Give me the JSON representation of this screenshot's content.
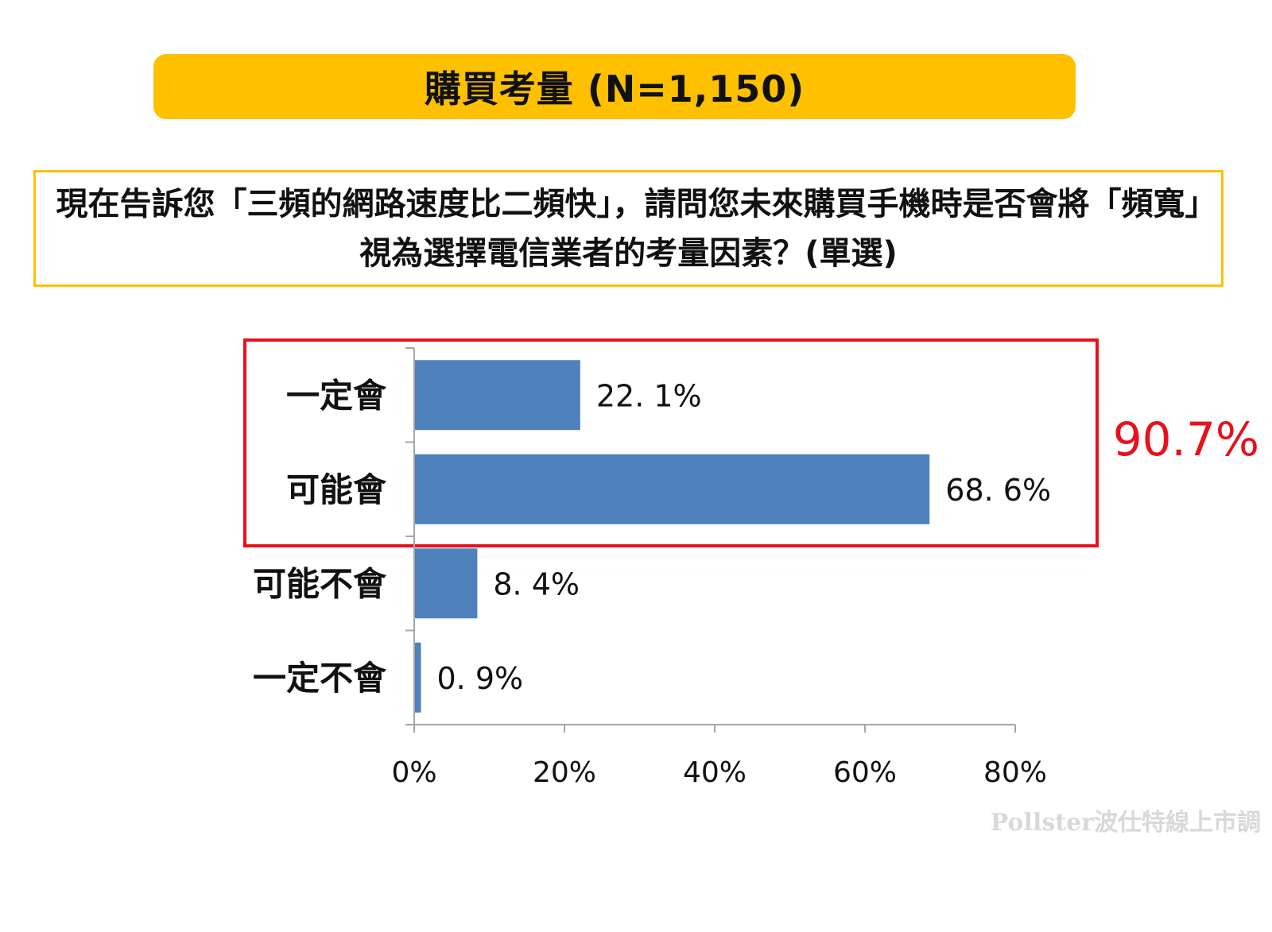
{
  "title": "購買考量 (N=1,150)",
  "question": "現在告訴您「三頻的網路速度比二頻快」，請問您未來購買手機時是否會將「頻寬」視為選擇電信業者的考量因素？(單選)",
  "highlight_total": "90.7%",
  "watermark": "Pollster波仕特線上市調",
  "colors": {
    "bar": "#4F81BD",
    "banner": "#FFC000",
    "highlight": "#E8101B",
    "axis": "#A6A6A6"
  },
  "chart_data": {
    "type": "bar",
    "orientation": "horizontal",
    "categories": [
      "一定會",
      "可能會",
      "可能不會",
      "一定不會"
    ],
    "values": [
      22.1,
      68.6,
      8.4,
      0.9
    ],
    "value_labels": [
      "22. 1%",
      "68. 6%",
      "8. 4%",
      "0. 9%"
    ],
    "xlim": [
      0,
      80
    ],
    "xticks": [
      0,
      20,
      40,
      60,
      80
    ],
    "xtick_labels": [
      "0%",
      "20%",
      "40%",
      "60%",
      "80%"
    ],
    "grid": false,
    "highlighted_categories": [
      "一定會",
      "可能會"
    ]
  }
}
